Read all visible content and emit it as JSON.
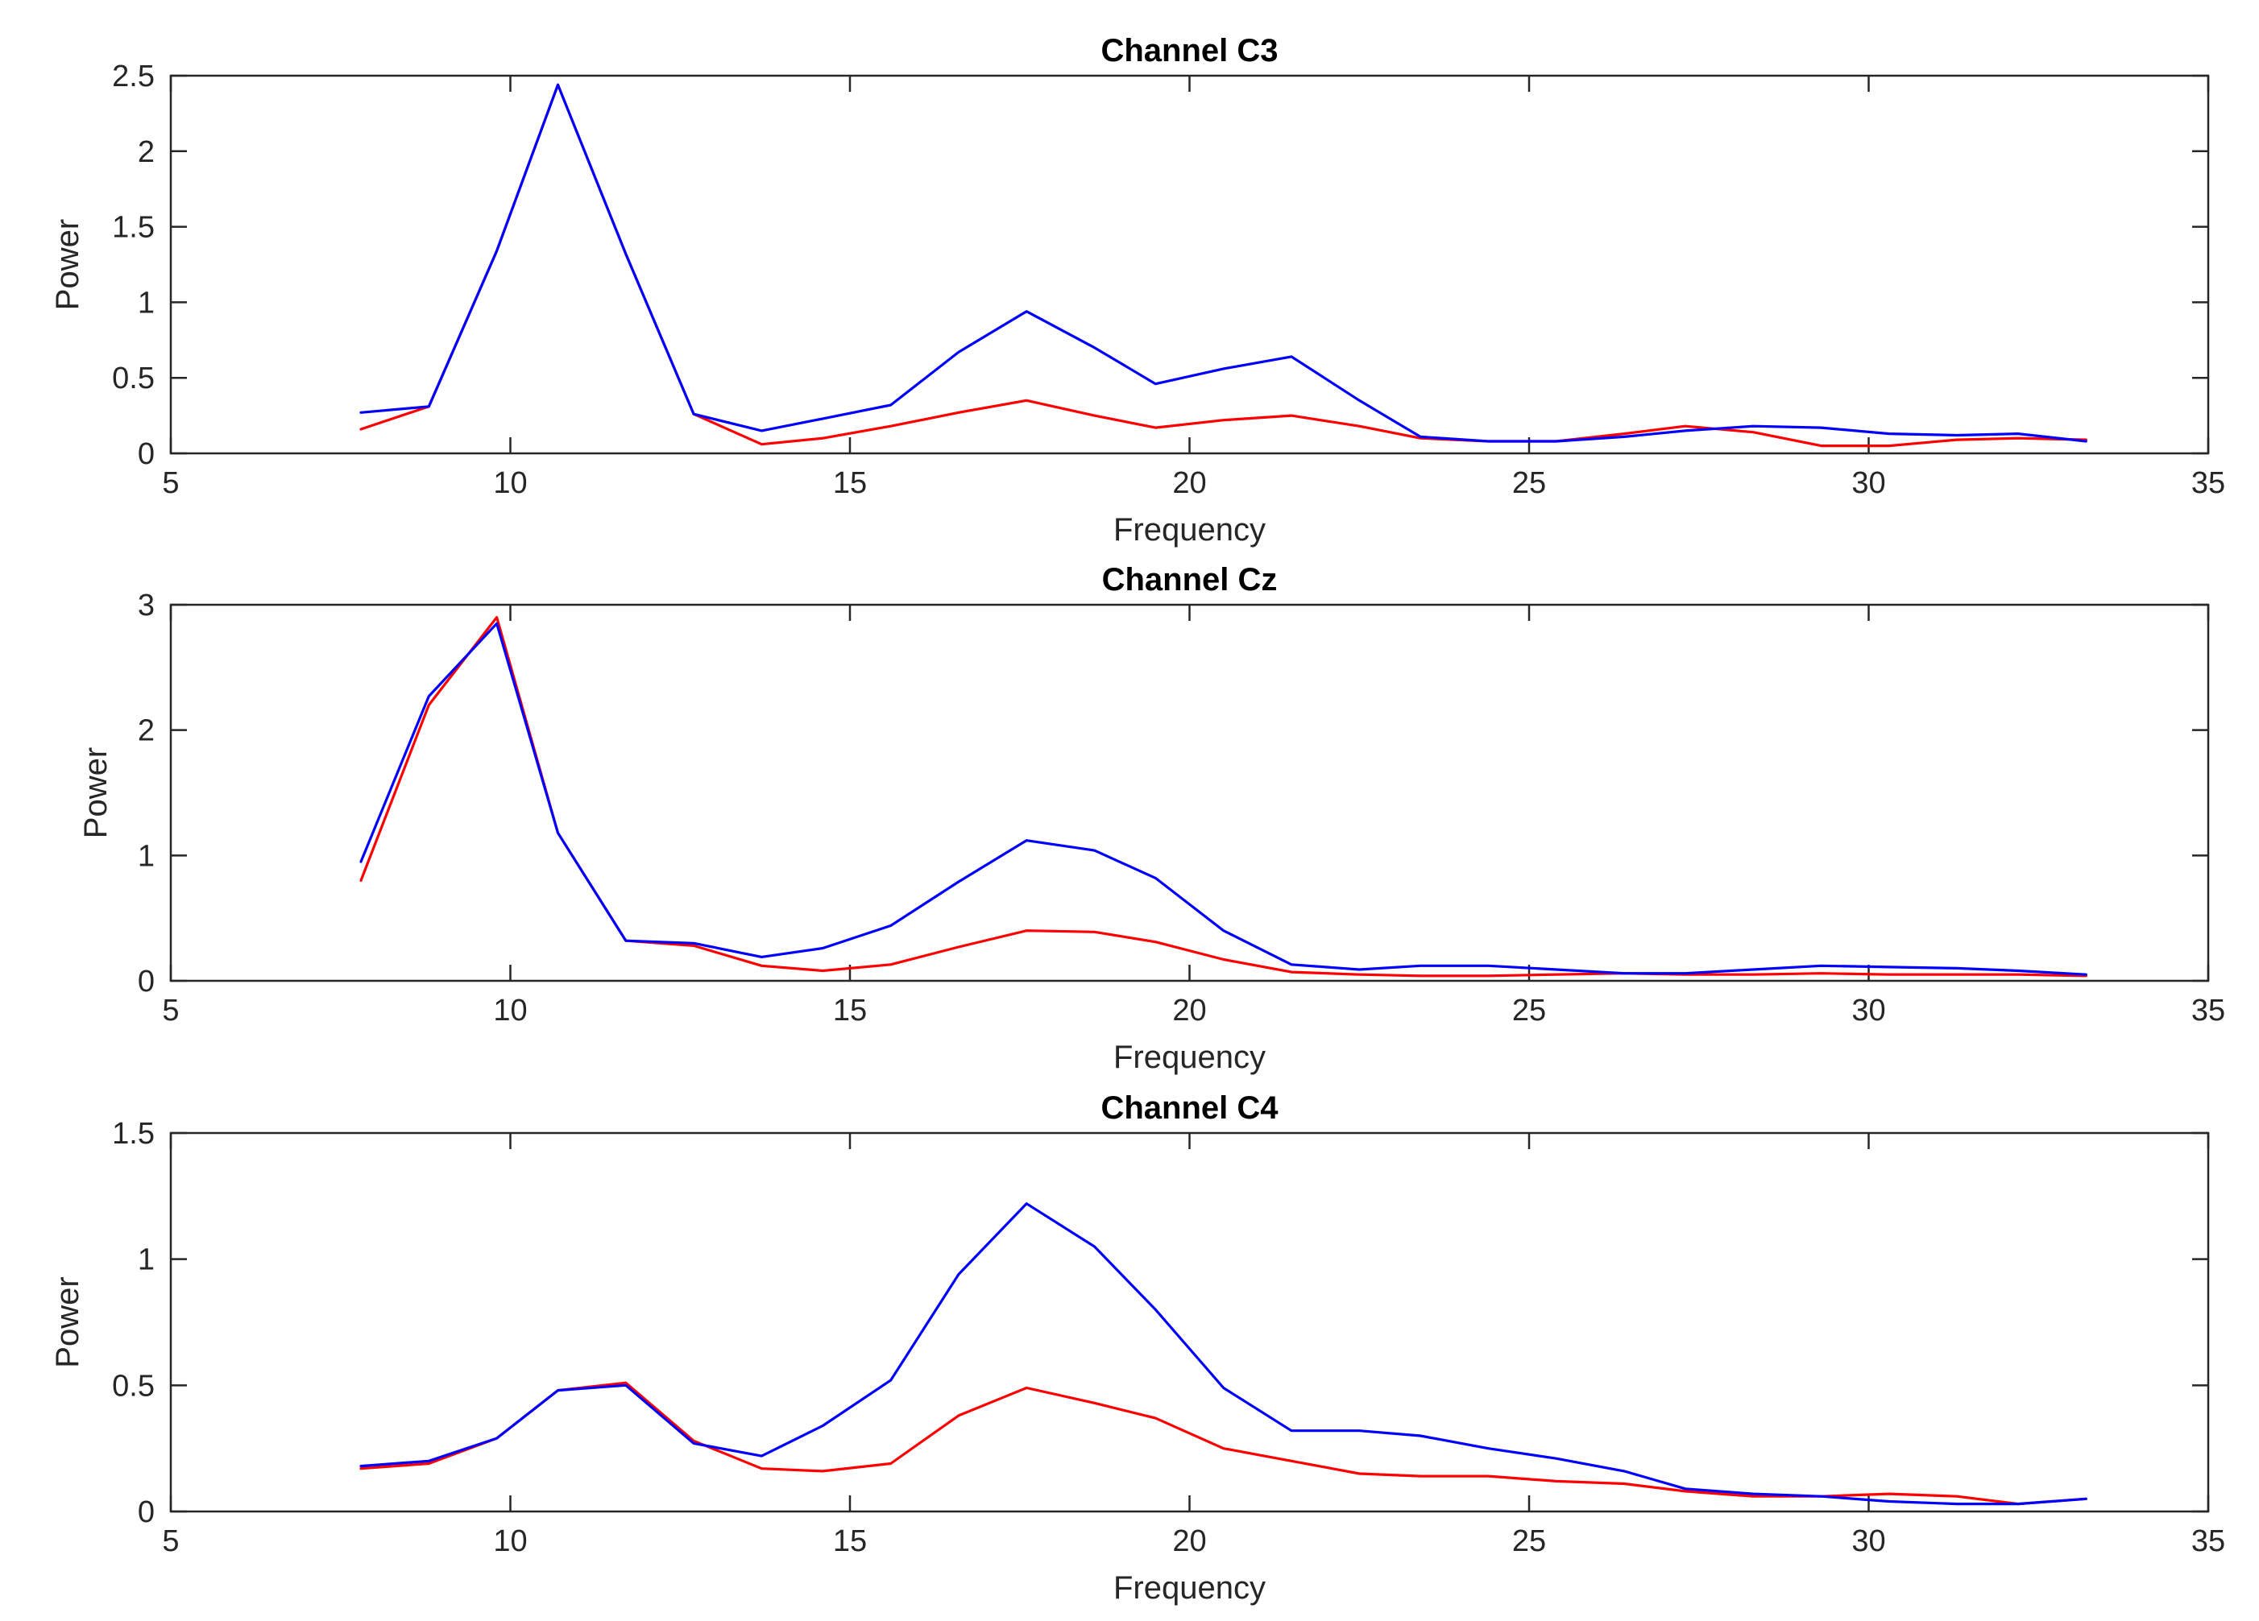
{
  "colors": {
    "blue": "#0000FF",
    "red": "#FF0000",
    "axis": "#262626"
  },
  "chart_data": [
    {
      "type": "line",
      "title": "Channel C3",
      "xlabel": "Frequency",
      "ylabel": "Power",
      "xlim": [
        5,
        35
      ],
      "ylim": [
        0,
        2.5
      ],
      "xticks": [
        "5",
        "10",
        "15",
        "20",
        "25",
        "30",
        "35"
      ],
      "yticks": [
        "0",
        "0.5",
        "1",
        "1.5",
        "2",
        "2.5"
      ],
      "x": [
        7.8,
        8.8,
        9.8,
        10.7,
        11.7,
        12.7,
        13.7,
        14.6,
        15.6,
        16.6,
        17.6,
        18.6,
        19.5,
        20.5,
        21.5,
        22.5,
        23.4,
        24.4,
        25.4,
        26.4,
        27.3,
        28.3,
        29.3,
        30.3,
        31.3,
        32.2,
        33.2
      ],
      "grid": false,
      "series": [
        {
          "name": "blue",
          "color": "#0000FF",
          "values": [
            0.27,
            0.31,
            1.34,
            2.44,
            1.32,
            0.26,
            0.15,
            0.23,
            0.32,
            0.67,
            0.94,
            0.7,
            0.46,
            0.56,
            0.64,
            0.35,
            0.11,
            0.08,
            0.08,
            0.11,
            0.15,
            0.18,
            0.17,
            0.13,
            0.12,
            0.13,
            0.08
          ]
        },
        {
          "name": "red",
          "color": "#FF0000",
          "values": [
            0.16,
            0.31,
            1.34,
            2.44,
            1.32,
            0.26,
            0.06,
            0.1,
            0.18,
            0.27,
            0.35,
            0.25,
            0.17,
            0.22,
            0.25,
            0.18,
            0.1,
            0.08,
            0.08,
            0.13,
            0.18,
            0.14,
            0.05,
            0.05,
            0.09,
            0.1,
            0.09
          ]
        }
      ]
    },
    {
      "type": "line",
      "title": "Channel Cz",
      "xlabel": "Frequency",
      "ylabel": "Power",
      "xlim": [
        5,
        35
      ],
      "ylim": [
        0,
        3
      ],
      "xticks": [
        "5",
        "10",
        "15",
        "20",
        "25",
        "30",
        "35"
      ],
      "yticks": [
        "0",
        "1",
        "2",
        "3"
      ],
      "x": [
        7.8,
        8.8,
        9.8,
        10.7,
        11.7,
        12.7,
        13.7,
        14.6,
        15.6,
        16.6,
        17.6,
        18.6,
        19.5,
        20.5,
        21.5,
        22.5,
        23.4,
        24.4,
        25.4,
        26.4,
        27.3,
        28.3,
        29.3,
        30.3,
        31.3,
        32.2,
        33.2
      ],
      "grid": false,
      "series": [
        {
          "name": "blue",
          "color": "#0000FF",
          "values": [
            0.95,
            2.27,
            2.85,
            1.18,
            0.32,
            0.3,
            0.19,
            0.26,
            0.44,
            0.79,
            1.12,
            1.04,
            0.82,
            0.4,
            0.13,
            0.09,
            0.12,
            0.12,
            0.09,
            0.06,
            0.06,
            0.09,
            0.12,
            0.11,
            0.1,
            0.08,
            0.05
          ]
        },
        {
          "name": "red",
          "color": "#FF0000",
          "values": [
            0.8,
            2.2,
            2.9,
            1.18,
            0.32,
            0.28,
            0.12,
            0.08,
            0.13,
            0.27,
            0.4,
            0.39,
            0.31,
            0.17,
            0.07,
            0.05,
            0.04,
            0.04,
            0.05,
            0.06,
            0.05,
            0.05,
            0.06,
            0.05,
            0.05,
            0.05,
            0.04
          ]
        }
      ]
    },
    {
      "type": "line",
      "title": "Channel C4",
      "xlabel": "Frequency",
      "ylabel": "Power",
      "xlim": [
        5,
        35
      ],
      "ylim": [
        0,
        1.5
      ],
      "xticks": [
        "5",
        "10",
        "15",
        "20",
        "25",
        "30",
        "35"
      ],
      "yticks": [
        "0",
        "0.5",
        "1",
        "1.5"
      ],
      "x": [
        7.8,
        8.8,
        9.8,
        10.7,
        11.7,
        12.7,
        13.7,
        14.6,
        15.6,
        16.6,
        17.6,
        18.6,
        19.5,
        20.5,
        21.5,
        22.5,
        23.4,
        24.4,
        25.4,
        26.4,
        27.3,
        28.3,
        29.3,
        30.3,
        31.3,
        32.2,
        33.2
      ],
      "grid": false,
      "series": [
        {
          "name": "blue",
          "color": "#0000FF",
          "values": [
            0.18,
            0.2,
            0.29,
            0.48,
            0.5,
            0.27,
            0.22,
            0.34,
            0.52,
            0.94,
            1.22,
            1.05,
            0.8,
            0.49,
            0.32,
            0.32,
            0.3,
            0.25,
            0.21,
            0.16,
            0.09,
            0.07,
            0.06,
            0.04,
            0.03,
            0.03,
            0.05
          ]
        },
        {
          "name": "red",
          "color": "#FF0000",
          "values": [
            0.17,
            0.19,
            0.29,
            0.48,
            0.51,
            0.28,
            0.17,
            0.16,
            0.19,
            0.38,
            0.49,
            0.43,
            0.37,
            0.25,
            0.2,
            0.15,
            0.14,
            0.14,
            0.12,
            0.11,
            0.08,
            0.06,
            0.06,
            0.07,
            0.06,
            0.03,
            0.05
          ]
        }
      ]
    }
  ]
}
